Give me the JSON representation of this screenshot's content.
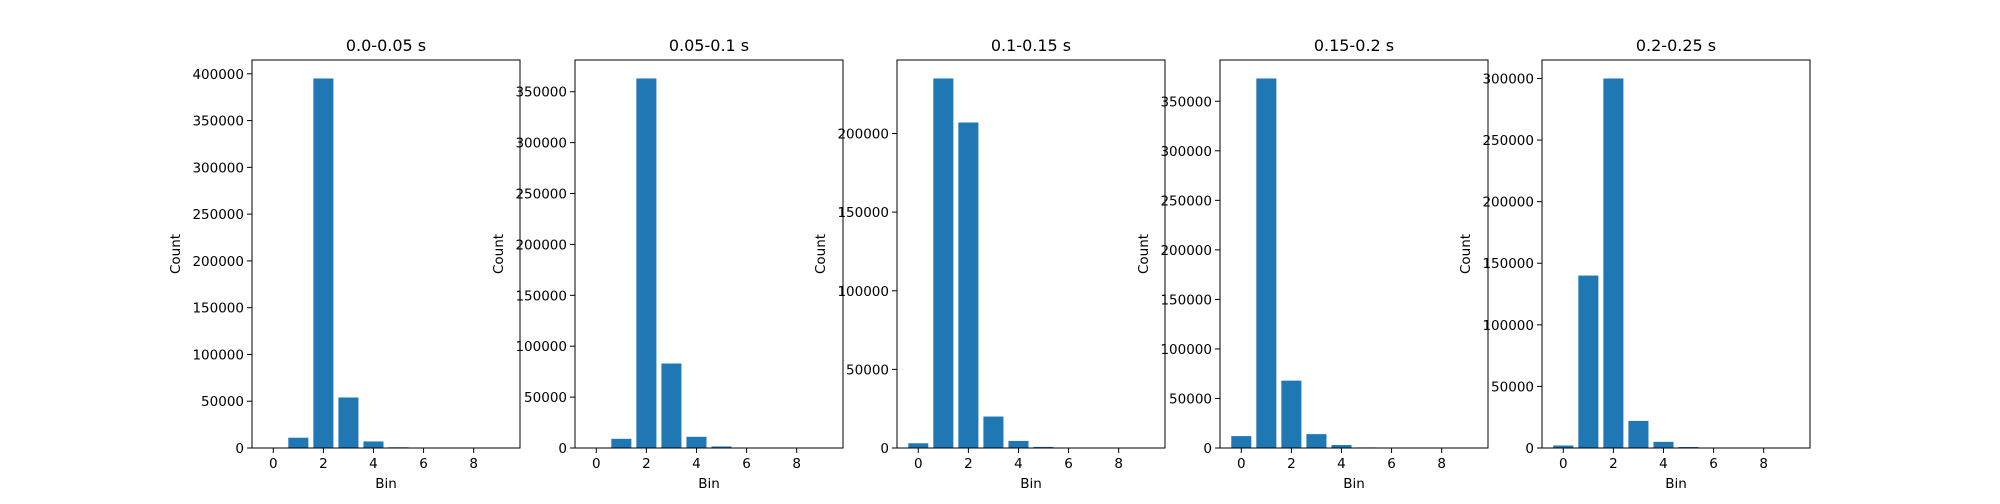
{
  "chart_data": [
    {
      "type": "bar",
      "title": "0.0-0.05 s",
      "xlabel": "Bin",
      "ylabel": "Count",
      "categories": [
        0,
        1,
        2,
        3,
        4,
        5,
        6,
        7,
        8,
        9
      ],
      "values": [
        500,
        11000,
        395000,
        54000,
        7000,
        800,
        100,
        0,
        0,
        0
      ],
      "xticks": [
        0,
        2,
        4,
        6,
        8
      ],
      "yticks": [
        0,
        50000,
        100000,
        150000,
        200000,
        250000,
        300000,
        350000,
        400000
      ],
      "xlim": [
        -0.85,
        9.85
      ],
      "ylim": [
        0,
        414750
      ],
      "color": "#1f77b4",
      "grid": false
    },
    {
      "type": "bar",
      "title": "0.05-0.1 s",
      "xlabel": "Bin",
      "ylabel": "Count",
      "categories": [
        0,
        1,
        2,
        3,
        4,
        5,
        6,
        7,
        8,
        9
      ],
      "values": [
        300,
        9000,
        363000,
        83000,
        11000,
        1500,
        200,
        0,
        0,
        0
      ],
      "xticks": [
        0,
        2,
        4,
        6,
        8
      ],
      "yticks": [
        0,
        50000,
        100000,
        150000,
        200000,
        250000,
        300000,
        350000
      ],
      "xlim": [
        -0.85,
        9.85
      ],
      "ylim": [
        0,
        381150
      ],
      "color": "#1f77b4",
      "grid": false
    },
    {
      "type": "bar",
      "title": "0.1-0.15 s",
      "xlabel": "Bin",
      "ylabel": "Count",
      "categories": [
        0,
        1,
        2,
        3,
        4,
        5,
        6,
        7,
        8,
        9
      ],
      "values": [
        3000,
        235000,
        207000,
        20000,
        4500,
        700,
        100,
        0,
        0,
        0
      ],
      "xticks": [
        0,
        2,
        4,
        6,
        8
      ],
      "yticks": [
        0,
        50000,
        100000,
        150000,
        200000
      ],
      "xlim": [
        -0.85,
        9.85
      ],
      "ylim": [
        0,
        246750
      ],
      "color": "#1f77b4",
      "grid": false
    },
    {
      "type": "bar",
      "title": "0.15-0.2 s",
      "xlabel": "Bin",
      "ylabel": "Count",
      "categories": [
        0,
        1,
        2,
        3,
        4,
        5,
        6,
        7,
        8,
        9
      ],
      "values": [
        12000,
        373000,
        68000,
        14000,
        3000,
        600,
        100,
        0,
        0,
        0
      ],
      "xticks": [
        0,
        2,
        4,
        6,
        8
      ],
      "yticks": [
        0,
        50000,
        100000,
        150000,
        200000,
        250000,
        300000,
        350000
      ],
      "xlim": [
        -0.85,
        9.85
      ],
      "ylim": [
        0,
        391650
      ],
      "color": "#1f77b4",
      "grid": false
    },
    {
      "type": "bar",
      "title": "0.2-0.25 s",
      "xlabel": "Bin",
      "ylabel": "Count",
      "categories": [
        0,
        1,
        2,
        3,
        4,
        5,
        6,
        7,
        8,
        9
      ],
      "values": [
        2000,
        140000,
        300000,
        22000,
        5000,
        800,
        100,
        0,
        0,
        0
      ],
      "xticks": [
        0,
        2,
        4,
        6,
        8
      ],
      "yticks": [
        0,
        50000,
        100000,
        150000,
        200000,
        250000,
        300000
      ],
      "xlim": [
        -0.85,
        9.85
      ],
      "ylim": [
        0,
        315000
      ],
      "color": "#1f77b4",
      "grid": false
    }
  ]
}
